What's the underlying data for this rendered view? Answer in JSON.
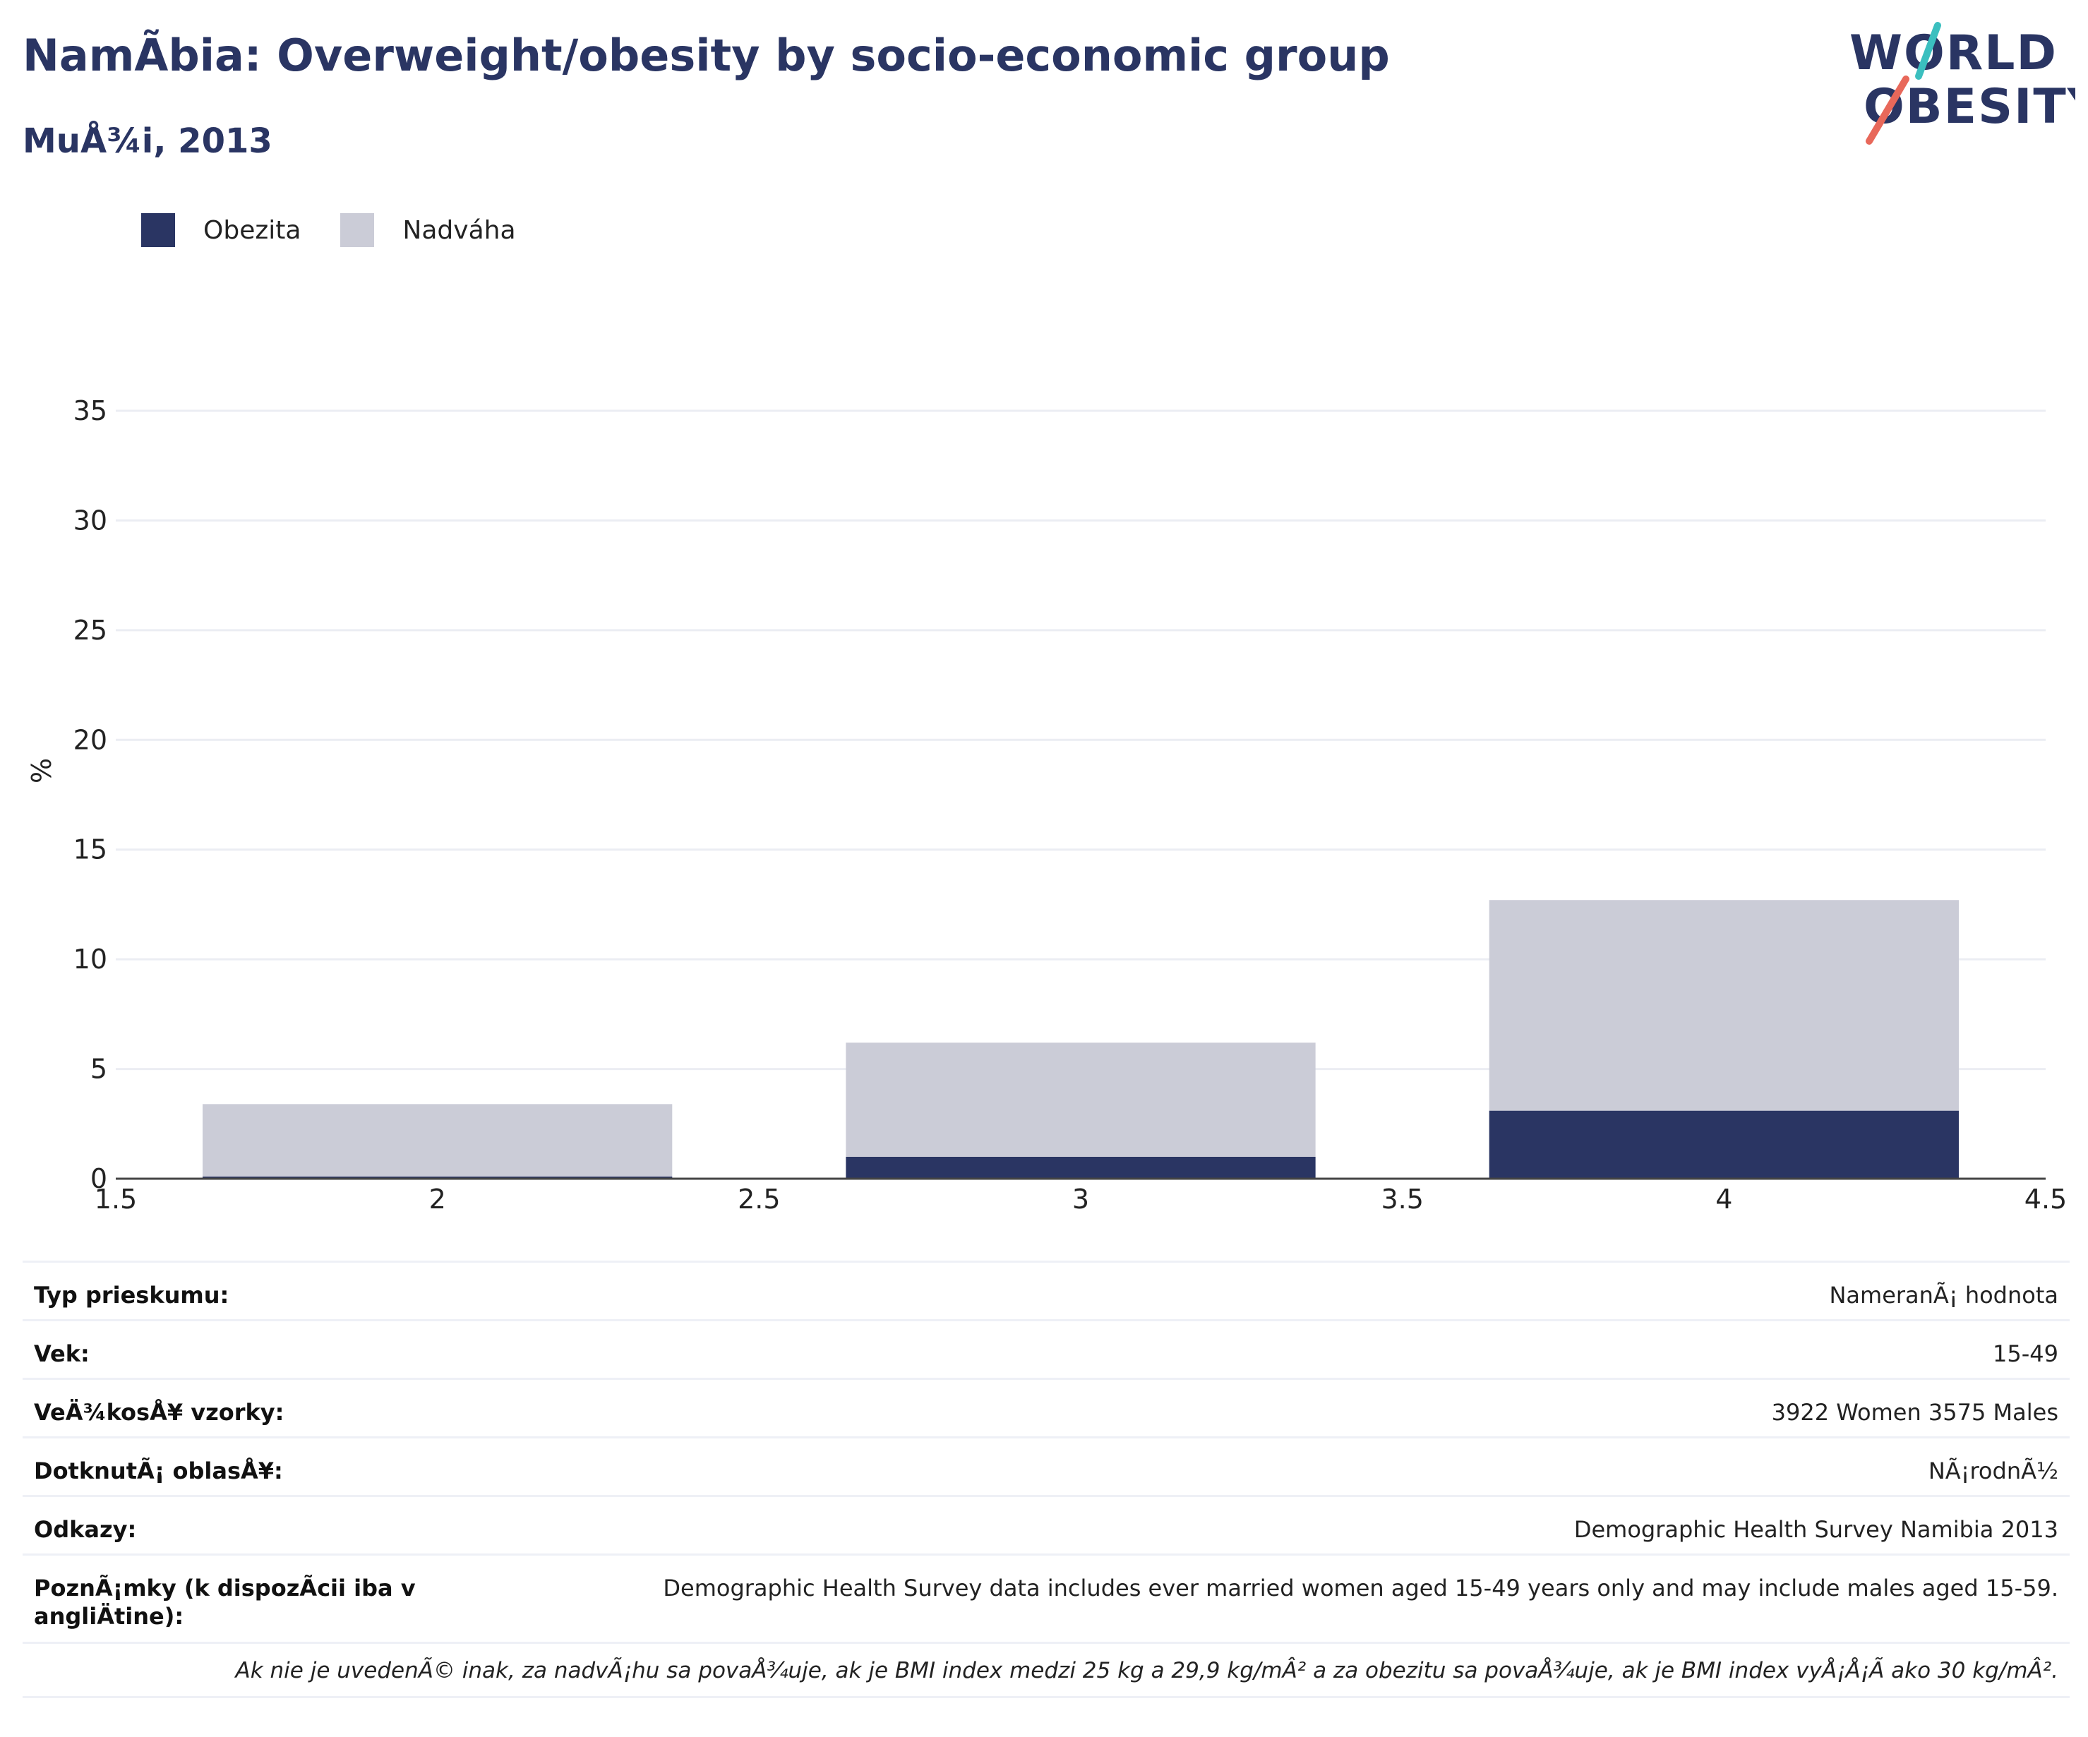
{
  "title": "NamÃbia: Overweight/obesity by socio-economic group",
  "subtitle": "MuÅ¾i, 2013",
  "logo": {
    "line1": "WORLD",
    "line2": "OBESITY"
  },
  "colors": {
    "obesity": "#2a3563",
    "overweight": "#cbccd7",
    "title": "#2a3563",
    "grid": "#ebedf3"
  },
  "chart_data": {
    "type": "bar",
    "stacked": true,
    "title": "NamÃbia: Overweight/obesity by socio-economic group",
    "subtitle": "MuÅ¾i, 2013",
    "ylabel": "%",
    "xlabel": "",
    "x": [
      2,
      3,
      4
    ],
    "series": [
      {
        "name": "Obezita",
        "color": "#2a3563",
        "values": [
          0.1,
          1.0,
          3.1
        ]
      },
      {
        "name": "Nadváha",
        "color": "#cbccd7",
        "values": [
          3.3,
          5.2,
          9.6
        ]
      }
    ],
    "xlim": [
      1.5,
      4.5
    ],
    "ylim": [
      0,
      35
    ],
    "xticks": [
      "1.5",
      "2",
      "2.5",
      "3",
      "3.5",
      "4",
      "4.5"
    ],
    "yticks": [
      "0",
      "5",
      "10",
      "15",
      "20",
      "25",
      "30",
      "35"
    ],
    "grid": true,
    "legend_position": "top-left"
  },
  "info_rows": [
    {
      "key": "Typ prieskumu:",
      "value": "NameranÃ¡ hodnota"
    },
    {
      "key": "Vek:",
      "value": "15-49"
    },
    {
      "key": "VeÄ¾kosÅ¥ vzorky:",
      "value": "3922 Women 3575 Males"
    },
    {
      "key": "DotknutÃ¡ oblasÅ¥:",
      "value": "NÃ¡rodnÃ½"
    },
    {
      "key": "Odkazy:",
      "value": "Demographic Health Survey Namibia 2013"
    },
    {
      "key": "PoznÃ¡mky (k dispozÃcii iba v angliÄtine):",
      "value": "Demographic Health Survey data includes ever married women aged 15-49 years only and may include males aged 15-59."
    }
  ],
  "footnote": "Ak nie je uvedenÃ© inak, za nadvÃ¡hu sa povaÅ¾uje, ak je BMI index medzi 25 kg a 29,9 kg/mÂ² a za obezitu sa povaÅ¾uje, ak je BMI index vyÅ¡Å¡Ã ako 30 kg/mÂ²."
}
